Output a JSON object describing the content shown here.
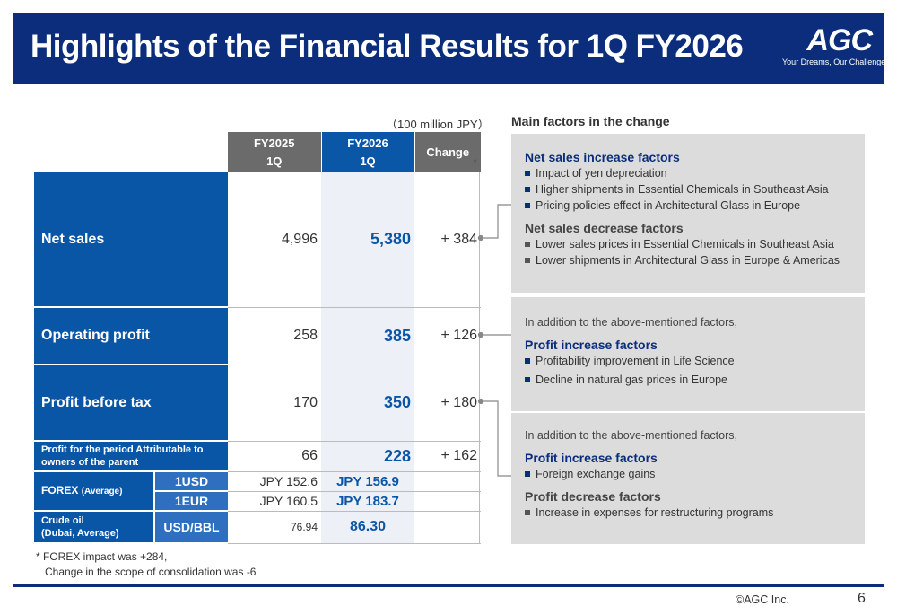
{
  "header": {
    "title": "Highlights of the Financial Results for 1Q FY2026",
    "logo_text": "AGC",
    "logo_tagline": "Your Dreams, Our Challenge"
  },
  "unit_note": "（100 million JPY）",
  "table": {
    "col_fy2025_line1": "FY2025",
    "col_fy2025_line2": "1Q",
    "col_fy2026_line1": "FY2026",
    "col_fy2026_line2": "1Q",
    "col_change": "Change",
    "rows": [
      {
        "label": "Net sales",
        "fy2025": "4,996",
        "fy2026": "5,380",
        "change": "+ 384",
        "star": "*"
      },
      {
        "label": "Operating profit",
        "fy2025": "258",
        "fy2026": "385",
        "change": "+ 126"
      },
      {
        "label": "Profit before tax",
        "fy2025": "170",
        "fy2026": "350",
        "change": "+ 180"
      },
      {
        "label": "Profit for the period Attributable to owners of the parent",
        "fy2025": "66",
        "fy2026": "228",
        "change": "+ 162"
      }
    ],
    "forex": {
      "label": "FOREX",
      "label_sub": "(Average)",
      "usd": {
        "unit": "1USD",
        "fy2025": "JPY  152.6",
        "fy2026": "JPY  156.9"
      },
      "eur": {
        "unit": "1EUR",
        "fy2025": "JPY  160.5",
        "fy2026": "JPY  183.7"
      }
    },
    "crude": {
      "label_line1": "Crude oil",
      "label_line2": "(Dubai, Average)",
      "unit": "USD/BBL",
      "fy2025": "76.94",
      "fy2026": "86.30"
    }
  },
  "footnote": {
    "line1": "* FOREX impact was +284,",
    "line2": "Change in the scope of consolidation was -6"
  },
  "factors": {
    "heading": "Main factors in the change",
    "box1": {
      "inc_title": "Net sales increase factors",
      "inc_items": [
        "Impact of yen depreciation",
        "Higher shipments in Essential Chemicals in Southeast Asia",
        "Pricing policies effect in Architectural Glass in Europe"
      ],
      "dec_title": "Net sales decrease factors",
      "dec_items": [
        "Lower sales prices in Essential Chemicals in Southeast Asia",
        "Lower shipments in Architectural Glass in Europe & Americas"
      ]
    },
    "box2": {
      "intro": "In addition to the above-mentioned factors,",
      "inc_title": "Profit increase factors",
      "inc_items": [
        "Profitability improvement in Life Science",
        "Decline in natural gas prices in Europe"
      ]
    },
    "box3": {
      "intro": "In addition to the above-mentioned factors,",
      "inc_title": "Profit increase factors",
      "inc_items": [
        "Foreign exchange gains"
      ],
      "dec_title": "Profit decrease factors",
      "dec_items": [
        "Increase in expenses for restructuring programs"
      ]
    }
  },
  "footer": {
    "copyright": "©AGC Inc.",
    "page": "6"
  },
  "colors": {
    "navy": "#0b2d7c",
    "blue": "#0a56a6",
    "gray": "#6b6b6b",
    "box_gray": "#dcdcdc"
  }
}
